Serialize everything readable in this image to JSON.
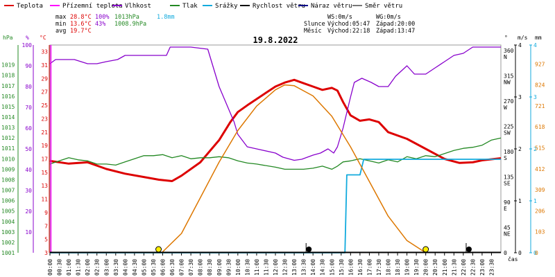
{
  "chart_data": {
    "type": "line",
    "title": "19.8.2022",
    "x_unit": "čas",
    "time_range_hours": [
      0,
      24
    ],
    "legend": [
      {
        "label": "Teplota",
        "color": "#dd0000"
      },
      {
        "label": "Přízemní teplota",
        "color": "#ff00ff"
      },
      {
        "label": "Vlhkost",
        "color": "#8800cc"
      },
      {
        "label": "Tlak",
        "color": "#228822"
      },
      {
        "label": "Srážky",
        "color": "#11aadd"
      },
      {
        "label": "Rychlost větru",
        "color": "#000000"
      },
      {
        "label": "Náraz větru",
        "color": "#000088"
      },
      {
        "label": "Směr větru",
        "color": "#777777"
      }
    ],
    "stats": {
      "max": {
        "label": "max",
        "temp": "28.8°C",
        "hum": "100%",
        "press": "1013hPa",
        "rain": "1.8mm"
      },
      "min": {
        "label": "min",
        "temp": "13.6°C",
        "hum": "43%",
        "press": "1008.9hPa"
      },
      "avg": {
        "label": "avg",
        "temp": "19.7°C"
      },
      "wind": {
        "ws": "WS:0m/s",
        "wg": "WG:0m/s"
      },
      "sun": {
        "label": "Slunce",
        "rise": "Východ:05:47",
        "set": "Západ:20:00"
      },
      "moon": {
        "label": "Měsíc",
        "rise": "Východ:22:18",
        "set": "Západ:13:47"
      }
    },
    "axes": {
      "pressure": {
        "unit": "hPa",
        "color": "#228822",
        "range": [
          1001,
          1020
        ],
        "ticks": [
          "1019",
          "1018",
          "1017",
          "1016",
          "1015",
          "1014",
          "1013",
          "1012",
          "1011",
          "1010",
          "1009",
          "1008",
          "1007",
          "1006",
          "1005",
          "1004",
          "1003",
          "1002",
          "1001"
        ]
      },
      "humidity": {
        "unit": "%",
        "color": "#8800cc",
        "range": [
          0,
          100
        ],
        "ticks": [
          "100",
          "90",
          "80",
          "70",
          "60",
          "50",
          "40",
          "30",
          "20",
          "10"
        ]
      },
      "temperature": {
        "unit": "°C",
        "color": "#dd0000",
        "range": [
          3,
          34
        ],
        "ticks": [
          "33",
          "31",
          "29",
          "27",
          "25",
          "23",
          "21",
          "19",
          "17",
          "15",
          "13",
          "11",
          "9",
          "7",
          "5",
          "3"
        ]
      },
      "direction": {
        "unit": "°",
        "range": [
          0,
          360
        ],
        "ticks": [
          {
            "v": "360",
            "d": "N"
          },
          {
            "v": "315",
            "d": "NW"
          },
          {
            "v": "270",
            "d": "W"
          },
          {
            "v": "225",
            "d": "SW"
          },
          {
            "v": "180",
            "d": "S"
          },
          {
            "v": "135",
            "d": "SE"
          },
          {
            "v": "90",
            "d": "E"
          },
          {
            "v": "45",
            "d": "NE"
          },
          {
            "v": "0",
            "d": ""
          }
        ]
      },
      "wind_speed": {
        "unit": "m/s",
        "color": "#11aadd",
        "ticks": [
          "4",
          "3",
          "2",
          "1",
          "0"
        ]
      },
      "rain": {
        "unit": "mm",
        "color": "#11aadd",
        "ticks": [
          "4",
          "3",
          "2",
          "1",
          "0"
        ]
      },
      "solar": {
        "color": "#dd7700",
        "ticks": [
          "927",
          "824",
          "721",
          "618",
          "515",
          "412",
          "309",
          "206",
          "103",
          "0"
        ]
      }
    },
    "x_ticks": [
      "00:00",
      "00:30",
      "01:00",
      "01:30",
      "02:00",
      "02:30",
      "03:00",
      "03:30",
      "04:00",
      "04:30",
      "05:00",
      "05:30",
      "06:00",
      "06:30",
      "07:00",
      "07:30",
      "08:00",
      "08:30",
      "09:00",
      "09:30",
      "10:00",
      "10:30",
      "11:00",
      "11:30",
      "12:00",
      "12:30",
      "13:00",
      "13:30",
      "14:00",
      "14:30",
      "15:00",
      "15:30",
      "16:00",
      "16:30",
      "17:00",
      "17:30",
      "18:00",
      "18:30",
      "19:00",
      "19:30",
      "20:00",
      "20:30",
      "21:00",
      "21:30",
      "22:00",
      "22:30",
      "23:00",
      "23:30"
    ],
    "series": [
      {
        "name": "Teplota",
        "color": "#dd0000",
        "axis": "temperature",
        "points": [
          [
            0,
            16.7
          ],
          [
            1,
            16.3
          ],
          [
            2,
            16.5
          ],
          [
            3,
            15.5
          ],
          [
            4,
            14.8
          ],
          [
            5,
            14.3
          ],
          [
            5.8,
            13.9
          ],
          [
            6.5,
            13.7
          ],
          [
            7,
            14.5
          ],
          [
            8,
            16.5
          ],
          [
            9,
            19.8
          ],
          [
            9.6,
            22.5
          ],
          [
            10,
            24
          ],
          [
            10.6,
            25.2
          ],
          [
            11.3,
            26.5
          ],
          [
            12,
            27.8
          ],
          [
            12.5,
            28.4
          ],
          [
            13,
            28.8
          ],
          [
            13.5,
            28.3
          ],
          [
            14,
            27.8
          ],
          [
            14.5,
            27.3
          ],
          [
            15,
            27.6
          ],
          [
            15.3,
            27.2
          ],
          [
            15.6,
            25.5
          ],
          [
            16,
            23.5
          ],
          [
            16.5,
            22.7
          ],
          [
            17,
            22.9
          ],
          [
            17.5,
            22.5
          ],
          [
            18,
            21
          ],
          [
            19,
            20
          ],
          [
            20,
            18.5
          ],
          [
            21,
            17
          ],
          [
            21.8,
            16.4
          ],
          [
            22.5,
            16.5
          ],
          [
            23,
            16.8
          ],
          [
            24,
            17.1
          ]
        ]
      },
      {
        "name": "Vlhkost",
        "color": "#8800cc",
        "axis": "humidity",
        "points": [
          [
            0,
            91
          ],
          [
            0.3,
            93
          ],
          [
            1.3,
            93
          ],
          [
            2,
            91
          ],
          [
            2.5,
            91
          ],
          [
            3,
            92
          ],
          [
            3.6,
            93
          ],
          [
            4,
            95
          ],
          [
            5,
            95
          ],
          [
            6.2,
            95
          ],
          [
            6.4,
            99
          ],
          [
            7.5,
            99
          ],
          [
            8.4,
            98
          ],
          [
            9,
            80
          ],
          [
            9.8,
            63
          ],
          [
            10,
            57
          ],
          [
            10.5,
            51
          ],
          [
            11,
            50
          ],
          [
            12,
            48
          ],
          [
            12.4,
            46
          ],
          [
            13,
            44.5
          ],
          [
            13.4,
            45
          ],
          [
            14,
            47
          ],
          [
            14.4,
            48
          ],
          [
            14.8,
            50
          ],
          [
            15.1,
            48
          ],
          [
            15.3,
            51
          ],
          [
            15.6,
            60
          ],
          [
            16,
            75
          ],
          [
            16.2,
            82
          ],
          [
            16.6,
            84
          ],
          [
            17.1,
            82
          ],
          [
            17.5,
            80
          ],
          [
            18,
            80
          ],
          [
            18.4,
            85
          ],
          [
            19,
            90
          ],
          [
            19.4,
            86
          ],
          [
            20,
            86
          ],
          [
            20.5,
            89
          ],
          [
            21,
            92
          ],
          [
            21.5,
            95
          ],
          [
            22,
            96
          ],
          [
            22.5,
            99
          ],
          [
            24,
            99
          ]
        ]
      },
      {
        "name": "Tlak",
        "color": "#228822",
        "axis": "pressure",
        "points": [
          [
            0,
            1009.5
          ],
          [
            0.5,
            1009.8
          ],
          [
            1,
            1010.1
          ],
          [
            1.5,
            1009.9
          ],
          [
            2,
            1009.8
          ],
          [
            2.5,
            1009.5
          ],
          [
            3,
            1009.5
          ],
          [
            3.5,
            1009.4
          ],
          [
            4,
            1009.7
          ],
          [
            4.5,
            1010
          ],
          [
            5,
            1010.3
          ],
          [
            5.5,
            1010.3
          ],
          [
            6,
            1010.4
          ],
          [
            6.5,
            1010.1
          ],
          [
            7,
            1010.3
          ],
          [
            7.5,
            1010
          ],
          [
            8,
            1010.1
          ],
          [
            8.5,
            1010.1
          ],
          [
            9,
            1010.2
          ],
          [
            9.5,
            1010.1
          ],
          [
            10,
            1009.8
          ],
          [
            10.5,
            1009.6
          ],
          [
            11,
            1009.5
          ],
          [
            12,
            1009.2
          ],
          [
            12.5,
            1009
          ],
          [
            13,
            1009
          ],
          [
            13.5,
            1009
          ],
          [
            14,
            1009.1
          ],
          [
            14.5,
            1009.3
          ],
          [
            15,
            1009
          ],
          [
            15.3,
            1009.3
          ],
          [
            15.6,
            1009.7
          ],
          [
            16,
            1009.8
          ],
          [
            16.5,
            1010
          ],
          [
            17,
            1009.8
          ],
          [
            17.5,
            1009.6
          ],
          [
            18,
            1009.9
          ],
          [
            18.5,
            1009.7
          ],
          [
            19,
            1010.2
          ],
          [
            19.5,
            1010
          ],
          [
            20,
            1010.3
          ],
          [
            20.5,
            1010.2
          ],
          [
            21,
            1010.5
          ],
          [
            21.5,
            1010.8
          ],
          [
            22,
            1011
          ],
          [
            22.5,
            1011.1
          ],
          [
            23,
            1011.3
          ],
          [
            23.5,
            1011.8
          ],
          [
            24,
            1012
          ]
        ]
      },
      {
        "name": "Srážky",
        "color": "#11aadd",
        "axis": "rain",
        "points": [
          [
            0,
            0
          ],
          [
            15.7,
            0
          ],
          [
            15.8,
            1.5
          ],
          [
            16.5,
            1.5
          ],
          [
            16.7,
            1.8
          ],
          [
            24,
            1.8
          ]
        ]
      },
      {
        "name": "Přízemní teplota",
        "color": "#ff00ff",
        "axis": "humidity",
        "points": [
          [
            0.05,
            0
          ],
          [
            0.05,
            100
          ]
        ]
      },
      {
        "name": "solar",
        "color": "#dd7700",
        "axis": "solar",
        "points": [
          [
            5.95,
            0
          ],
          [
            7,
            95
          ],
          [
            8,
            270
          ],
          [
            9,
            445
          ],
          [
            10,
            600
          ],
          [
            11,
            720
          ],
          [
            12,
            800
          ],
          [
            12.5,
            824
          ],
          [
            13,
            820
          ],
          [
            14,
            770
          ],
          [
            15,
            670
          ],
          [
            16,
            520
          ],
          [
            17,
            350
          ],
          [
            18,
            180
          ],
          [
            19,
            60
          ],
          [
            20,
            0
          ]
        ]
      }
    ],
    "markers": [
      {
        "type": "sun",
        "time": 5.78
      },
      {
        "type": "sun",
        "time": 20.0
      },
      {
        "type": "moon",
        "time": 13.78
      },
      {
        "type": "moon",
        "time": 22.3
      }
    ]
  }
}
